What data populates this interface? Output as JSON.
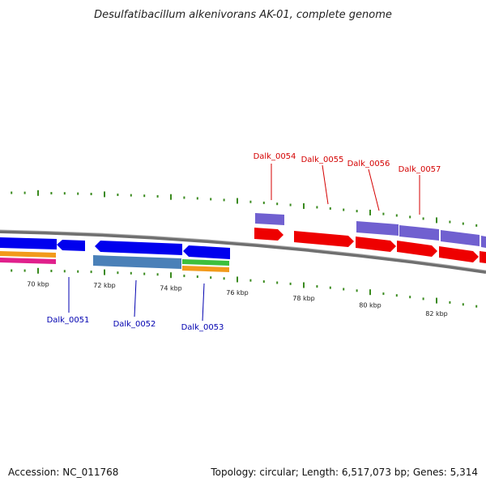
{
  "title": "Desulfatibacillum alkenivorans AK-01, complete genome",
  "footer": {
    "accession": "Accession: NC_011768",
    "summary": "Topology: circular; Length: 6,517,073 bp; Genes: 5,314"
  },
  "colors": {
    "backbone": "#808080",
    "tick": "#3a8a1e",
    "gene_blue": "#0000ee",
    "gene_red": "#ee0000",
    "gene_purple": "#7060d0",
    "gene_steel": "#4a80b8",
    "label_red": "#d40000",
    "label_blue": "#0000b0"
  },
  "chart_data": {
    "type": "genome-map",
    "axis": {
      "unit": "kbp",
      "ticks": [
        {
          "kbp": 70,
          "label": "70 kbp"
        },
        {
          "kbp": 72,
          "label": "72 kbp"
        },
        {
          "kbp": 74,
          "label": "74 kbp"
        },
        {
          "kbp": 76,
          "label": "76 kbp"
        },
        {
          "kbp": 78,
          "label": "78 kbp"
        },
        {
          "kbp": 80,
          "label": "80 kbp"
        },
        {
          "kbp": 82,
          "label": "82 kbp"
        }
      ]
    },
    "annotated_genes": [
      {
        "name": "Dalk_0051",
        "strand": "minus"
      },
      {
        "name": "Dalk_0052",
        "strand": "minus"
      },
      {
        "name": "Dalk_0053",
        "strand": "minus"
      },
      {
        "name": "Dalk_0054",
        "strand": "plus"
      },
      {
        "name": "Dalk_0055",
        "strand": "plus"
      },
      {
        "name": "Dalk_0056",
        "strand": "plus"
      },
      {
        "name": "Dalk_0057",
        "strand": "plus"
      }
    ]
  }
}
